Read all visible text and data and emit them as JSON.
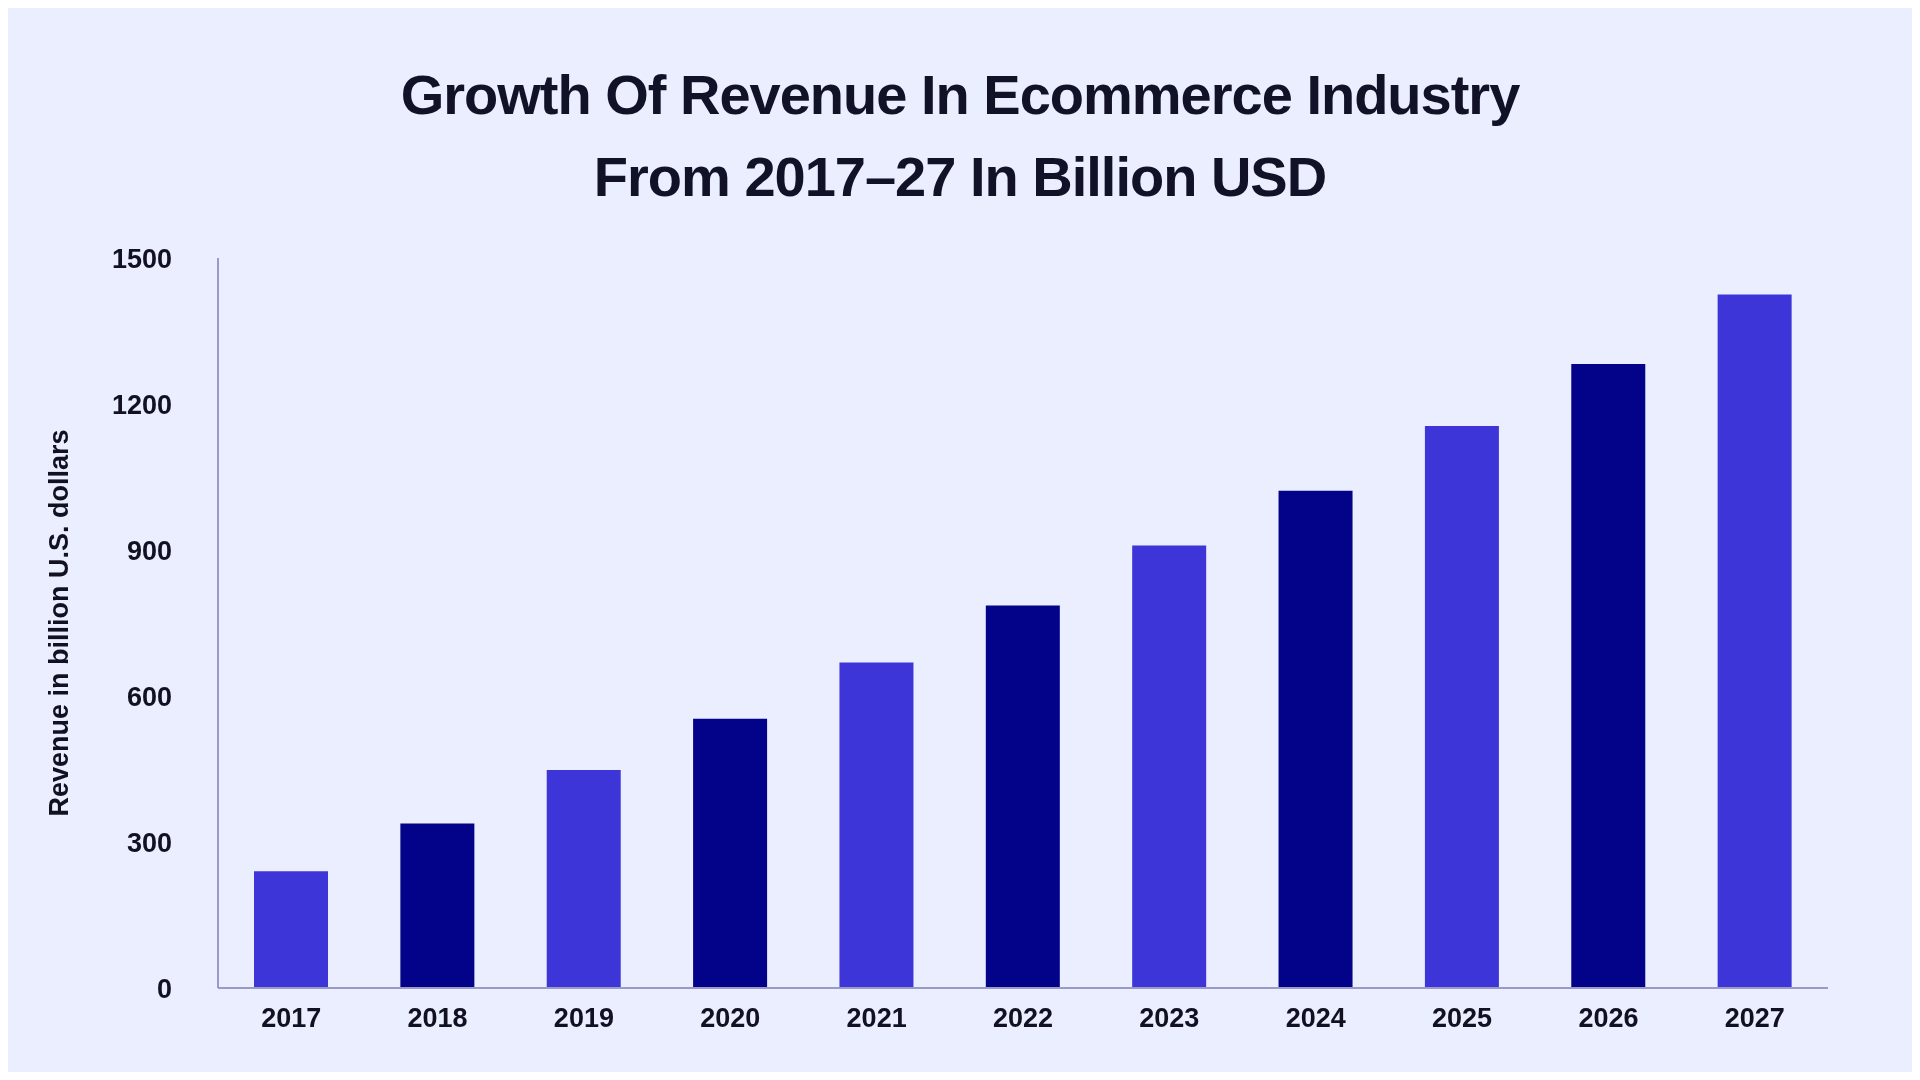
{
  "chart_data": {
    "type": "bar",
    "title": "Growth Of Revenue In Ecommerce Industry\nFrom 2017–27 In Billion USD",
    "ylabel": "Revenue in billion U.S. dollars",
    "categories": [
      "2017",
      "2018",
      "2019",
      "2020",
      "2021",
      "2022",
      "2023",
      "2024",
      "2025",
      "2026",
      "2027"
    ],
    "values": [
      240,
      338,
      448,
      553,
      669,
      786,
      909,
      1022,
      1155,
      1282,
      1425
    ],
    "colors": [
      "#3d35d8",
      "#03038a",
      "#3d35d8",
      "#03038a",
      "#3d35d8",
      "#03038a",
      "#3d35d8",
      "#03038a",
      "#3d35d8",
      "#03038a",
      "#3d35d8"
    ],
    "ylim": [
      0,
      1500
    ],
    "yticks": [
      0,
      300,
      600,
      900,
      1200,
      1500
    ],
    "grid": false,
    "legend": false
  }
}
